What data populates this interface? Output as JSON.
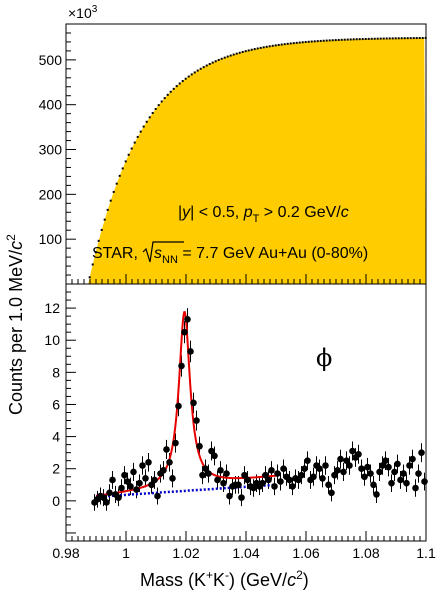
{
  "chart_data": [
    {
      "panel": "top",
      "type": "histogram",
      "description_source": "same-event K+K- invariant mass distribution",
      "xlim": [
        0.98,
        1.1
      ],
      "ylim": [
        0,
        580
      ],
      "y_multiplier_label": "×10",
      "y_multiplier_exp": "3",
      "yticks": [
        100,
        200,
        300,
        400,
        500
      ],
      "fill_color": "#ffcc00",
      "threshold": 0.9874,
      "plateau": 550,
      "shape_k": 55,
      "x": [
        0.9875,
        0.9885,
        0.99,
        0.992,
        0.995,
        1.0,
        1.005,
        1.01,
        1.015,
        1.02,
        1.03,
        1.04,
        1.05,
        1.06,
        1.07,
        1.08,
        1.09,
        1.1
      ],
      "y": [
        25,
        62,
        100,
        140,
        195,
        262,
        320,
        368,
        406,
        435,
        478,
        508,
        528,
        540,
        546,
        550,
        551,
        550
      ],
      "annotation_line1": {
        "a": "|",
        "b": "y",
        "c": "| < 0.5, ",
        "d": "p",
        "e": "T",
        "f": " > 0.2 GeV/",
        "g": "c"
      },
      "annotation_line2": {
        "a": "STAR, ",
        "b": "s",
        "c": "NN",
        "d": " = 7.7 GeV Au+Au (0-80%)"
      }
    },
    {
      "panel": "bottom",
      "type": "scatter",
      "xlim": [
        0.98,
        1.1
      ],
      "ylim": [
        -2.5,
        13.5
      ],
      "yticks": [
        0,
        2,
        4,
        6,
        8,
        10,
        12
      ],
      "xticks": [
        0.98,
        1,
        1.02,
        1.04,
        1.06,
        1.08,
        1.1
      ],
      "xtick_labels": [
        "0.98",
        "1",
        "1.02",
        "1.04",
        "1.06",
        "1.08",
        "1.1"
      ],
      "label": "ϕ",
      "points_x": [
        0.9895,
        0.9905,
        0.9915,
        0.9925,
        0.9935,
        0.9945,
        0.9955,
        0.9965,
        0.9975,
        0.9985,
        0.9995,
        1.0005,
        1.0015,
        1.0025,
        1.0035,
        1.0045,
        1.0055,
        1.0065,
        1.0075,
        1.0085,
        1.0095,
        1.0105,
        1.0115,
        1.0125,
        1.0135,
        1.0145,
        1.0155,
        1.0165,
        1.0175,
        1.0185,
        1.0195,
        1.0205,
        1.0215,
        1.0225,
        1.0235,
        1.0245,
        1.0255,
        1.0265,
        1.0275,
        1.0285,
        1.0295,
        1.0305,
        1.0315,
        1.0325,
        1.0335,
        1.0345,
        1.0355,
        1.0365,
        1.0375,
        1.0385,
        1.0395,
        1.0405,
        1.0415,
        1.0425,
        1.0435,
        1.0445,
        1.0455,
        1.0465,
        1.0475,
        1.0485,
        1.0495,
        1.0505,
        1.0515,
        1.0525,
        1.0535,
        1.0545,
        1.0555,
        1.0565,
        1.0575,
        1.0585,
        1.0595,
        1.0605,
        1.0615,
        1.0625,
        1.0635,
        1.0645,
        1.0655,
        1.0665,
        1.0675,
        1.0685,
        1.0695,
        1.0705,
        1.0715,
        1.0725,
        1.0735,
        1.0745,
        1.0755,
        1.0765,
        1.0775,
        1.0785,
        1.0795,
        1.0805,
        1.0815,
        1.0825,
        1.0835,
        1.0845,
        1.0855,
        1.0865,
        1.0875,
        1.0885,
        1.0895,
        1.0905,
        1.0915,
        1.0925,
        1.0935,
        1.0945,
        1.0955,
        1.0965,
        1.0975,
        1.0985,
        1.0995
      ],
      "points_y": [
        -0.1,
        0.1,
        0.3,
        0.2,
        -0.1,
        0.5,
        1.3,
        0.4,
        0.2,
        0.8,
        1.6,
        1.2,
        0.9,
        1.8,
        0.7,
        1.1,
        2.2,
        1.4,
        2.4,
        1.0,
        1.3,
        0.3,
        1.7,
        1.9,
        3.2,
        2.4,
        1.4,
        3.6,
        5.9,
        8.4,
        10.5,
        11.3,
        9.3,
        6.1,
        5.0,
        3.4,
        1.6,
        2.0,
        1.7,
        3.1,
        2.8,
        1.3,
        1.9,
        1.1,
        1.7,
        0.3,
        0.9,
        1.0,
        1.0,
        0.2,
        1.6,
        1.3,
        0.9,
        0.8,
        1.1,
        0.9,
        1.1,
        1.6,
        1.3,
        1.9,
        0.9,
        1.7,
        1.2,
        2.0,
        1.5,
        1.3,
        0.9,
        1.4,
        1.3,
        1.6,
        2.0,
        2.5,
        1.3,
        1.5,
        2.2,
        2.0,
        1.4,
        2.2,
        1.0,
        0.5,
        1.6,
        1.9,
        2.6,
        1.8,
        2.5,
        2.2,
        3.1,
        2.7,
        2.9,
        2.0,
        1.5,
        2.1,
        1.7,
        1.0,
        0.4,
        1.8,
        2.2,
        2.5,
        2.1,
        1.1,
        1.8,
        2.3,
        1.3,
        1.7,
        1.1,
        2.2,
        2.6,
        0.8,
        1.7,
        3.0,
        1.2
      ],
      "fit_total": {
        "xmin": 0.99,
        "xmax": 1.05,
        "mass": 1.0195,
        "width": 0.0045,
        "peak": 10.9,
        "bg_at_x0": 0.25,
        "bg_slope": 21.0,
        "x0": 0.99,
        "color": "#e60000"
      },
      "fit_background": {
        "xmin": 0.99,
        "xmax": 1.05,
        "y_start": 0.25,
        "y_end": 1.0,
        "color": "#0000cc"
      }
    }
  ],
  "axes": {
    "ylabel_prefix": "Counts per 1.0 MeV/",
    "ylabel_italic": "c",
    "ylabel_sup": "2",
    "xlabel": {
      "a": "Mass (K",
      "b": "+",
      "c": "K",
      "d": "-",
      "e": ") (GeV/",
      "f": "c",
      "g": "2",
      "h": ")"
    }
  }
}
